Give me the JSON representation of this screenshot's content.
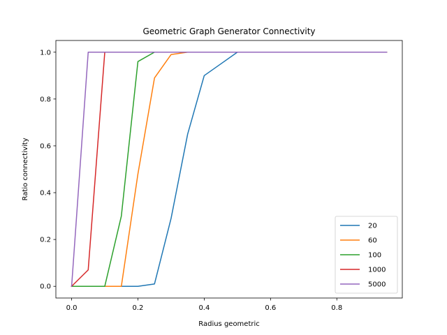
{
  "chart_data": {
    "type": "line",
    "title": "Geometric Graph Generator Connectivity",
    "xlabel": "Radius geometric",
    "ylabel": "Ratio connectivity",
    "xlim": [
      -0.0475,
      0.9975
    ],
    "ylim": [
      -0.05,
      1.05
    ],
    "xticks": [
      0.0,
      0.2,
      0.4,
      0.6,
      0.8
    ],
    "xtick_labels": [
      "0.0",
      "0.2",
      "0.4",
      "0.6",
      "0.8"
    ],
    "yticks": [
      0.0,
      0.2,
      0.4,
      0.6,
      0.8,
      1.0
    ],
    "ytick_labels": [
      "0.0",
      "0.2",
      "0.4",
      "0.6",
      "0.8",
      "1.0"
    ],
    "grid": false,
    "legend_position": "lower right",
    "x": [
      0.0,
      0.05,
      0.1,
      0.15,
      0.2,
      0.25,
      0.3,
      0.35,
      0.4,
      0.45,
      0.5,
      0.55,
      0.6,
      0.65,
      0.7,
      0.75,
      0.8,
      0.85,
      0.9,
      0.95
    ],
    "series": [
      {
        "name": "20",
        "color": "#1f77b4",
        "values": [
          0,
          0,
          0,
          0,
          0,
          0.01,
          0.29,
          0.65,
          0.9,
          0.95,
          1,
          1,
          1,
          1,
          1,
          1,
          1,
          1,
          1,
          1
        ]
      },
      {
        "name": "60",
        "color": "#ff7f0e",
        "values": [
          0,
          0,
          0,
          0,
          0.48,
          0.89,
          0.99,
          1,
          1,
          1,
          1,
          1,
          1,
          1,
          1,
          1,
          1,
          1,
          1,
          1
        ]
      },
      {
        "name": "100",
        "color": "#2ca02c",
        "values": [
          0,
          0,
          0,
          0.3,
          0.96,
          1,
          1,
          1,
          1,
          1,
          1,
          1,
          1,
          1,
          1,
          1,
          1,
          1,
          1,
          1
        ]
      },
      {
        "name": "1000",
        "color": "#d62728",
        "values": [
          0,
          0.07,
          1,
          1,
          1,
          1,
          1,
          1,
          1,
          1,
          1,
          1,
          1,
          1,
          1,
          1,
          1,
          1,
          1,
          1
        ]
      },
      {
        "name": "5000",
        "color": "#9467bd",
        "values": [
          0,
          1,
          1,
          1,
          1,
          1,
          1,
          1,
          1,
          1,
          1,
          1,
          1,
          1,
          1,
          1,
          1,
          1,
          1,
          1
        ]
      }
    ]
  }
}
